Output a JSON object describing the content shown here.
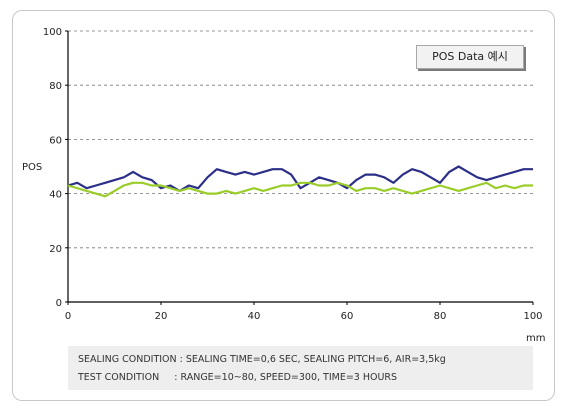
{
  "chart_data": {
    "type": "line",
    "ylabel": "POS",
    "xunit": "mm",
    "xlim": [
      0,
      100
    ],
    "ylim": [
      0,
      100
    ],
    "xticks": [
      0,
      20,
      40,
      60,
      80,
      100
    ],
    "yticks": [
      0,
      20,
      40,
      60,
      80,
      100
    ],
    "grid": "horizontal-dashed",
    "legend_label": "POS Data 예시",
    "series": [
      {
        "color": "#2b2f87",
        "x": [
          0,
          2,
          4,
          6,
          8,
          10,
          12,
          14,
          16,
          18,
          20,
          22,
          24,
          26,
          28,
          30,
          32,
          34,
          36,
          38,
          40,
          42,
          44,
          46,
          48,
          50,
          52,
          54,
          56,
          58,
          60,
          62,
          64,
          66,
          68,
          70,
          72,
          74,
          76,
          78,
          80,
          82,
          84,
          86,
          88,
          90,
          92,
          94,
          96,
          98,
          100
        ],
        "y": [
          43,
          44,
          42,
          43,
          44,
          45,
          46,
          48,
          46,
          45,
          42,
          43,
          41,
          43,
          42,
          46,
          49,
          48,
          47,
          48,
          47,
          48,
          49,
          49,
          47,
          42,
          44,
          46,
          45,
          44,
          42,
          45,
          47,
          47,
          46,
          44,
          47,
          49,
          48,
          46,
          44,
          48,
          50,
          48,
          46,
          45,
          46,
          47,
          48,
          49,
          49
        ]
      },
      {
        "color": "#9acd2a",
        "x": [
          0,
          2,
          4,
          6,
          8,
          10,
          12,
          14,
          16,
          18,
          20,
          22,
          24,
          26,
          28,
          30,
          32,
          34,
          36,
          38,
          40,
          42,
          44,
          46,
          48,
          50,
          52,
          54,
          56,
          58,
          60,
          62,
          64,
          66,
          68,
          70,
          72,
          74,
          76,
          78,
          80,
          82,
          84,
          86,
          88,
          90,
          92,
          94,
          96,
          98,
          100
        ],
        "y": [
          43,
          42,
          41,
          40,
          39,
          41,
          43,
          44,
          44,
          43,
          43,
          42,
          41,
          42,
          41,
          40,
          40,
          41,
          40,
          41,
          42,
          41,
          42,
          43,
          43,
          44,
          44,
          43,
          43,
          44,
          43,
          41,
          42,
          42,
          41,
          42,
          41,
          40,
          41,
          42,
          43,
          42,
          41,
          42,
          43,
          44,
          42,
          43,
          42,
          43,
          43
        ]
      }
    ]
  },
  "footer": {
    "line1": "SEALING CONDITION : SEALING TIME=0,6 SEC, SEALING PITCH=6, AIR=3,5kg",
    "line2": "TEST CONDITION     : RANGE=10~80, SPEED=300, TIME=3 HOURS"
  }
}
